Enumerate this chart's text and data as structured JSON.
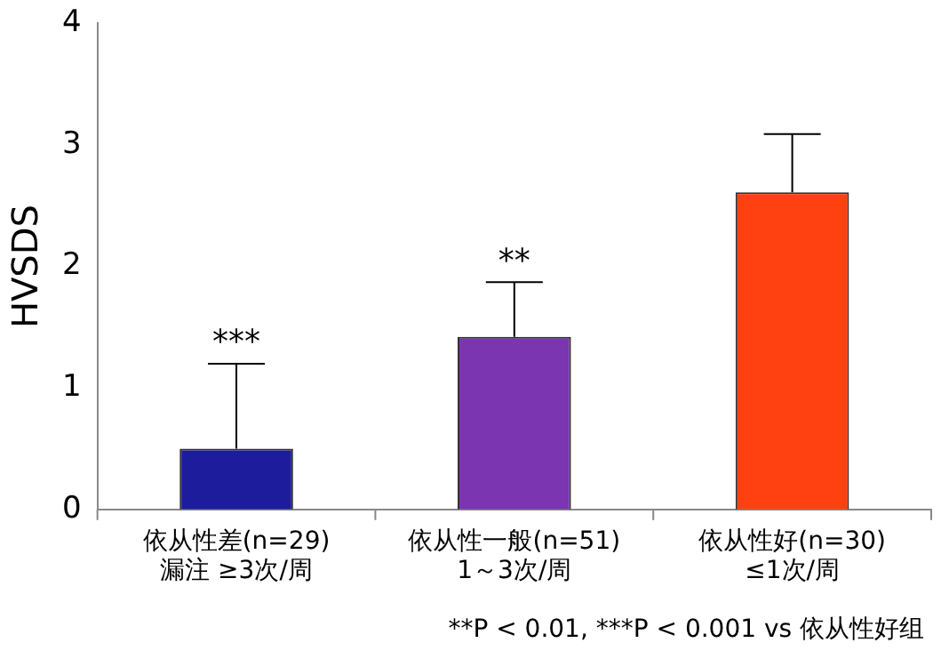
{
  "chart_data": {
    "type": "bar",
    "ylabel": "HVSDS",
    "categories": [
      "依从性差(n=29)\n漏注 ≥3次/周",
      "依从性一般(n=51)\n1～3次/周",
      "依从性好(n=30)\n≤1次/周"
    ],
    "values": [
      0.5,
      1.42,
      2.61
    ],
    "colors": [
      "#1c1c9c",
      "#7b35b0",
      "#ff4010"
    ],
    "errors": [
      [
        0.5,
        1.2
      ],
      [
        1.42,
        1.87
      ],
      [
        2.61,
        3.09
      ]
    ],
    "ylim": [
      0,
      4
    ],
    "yticks": [
      0,
      1,
      2,
      3,
      4
    ],
    "grid": false,
    "legend": false,
    "annotations": [
      {
        "text": "***",
        "x": "依从性差(n=29)\n漏注 ≥3次/周",
        "y": 1.2
      },
      {
        "text": "**",
        "x": "依从性一般(n=51)\n1～3次/周",
        "y": 1.87
      },
      "**P < 0.01, ***P < 0.001 vs 依从性好组"
    ]
  }
}
